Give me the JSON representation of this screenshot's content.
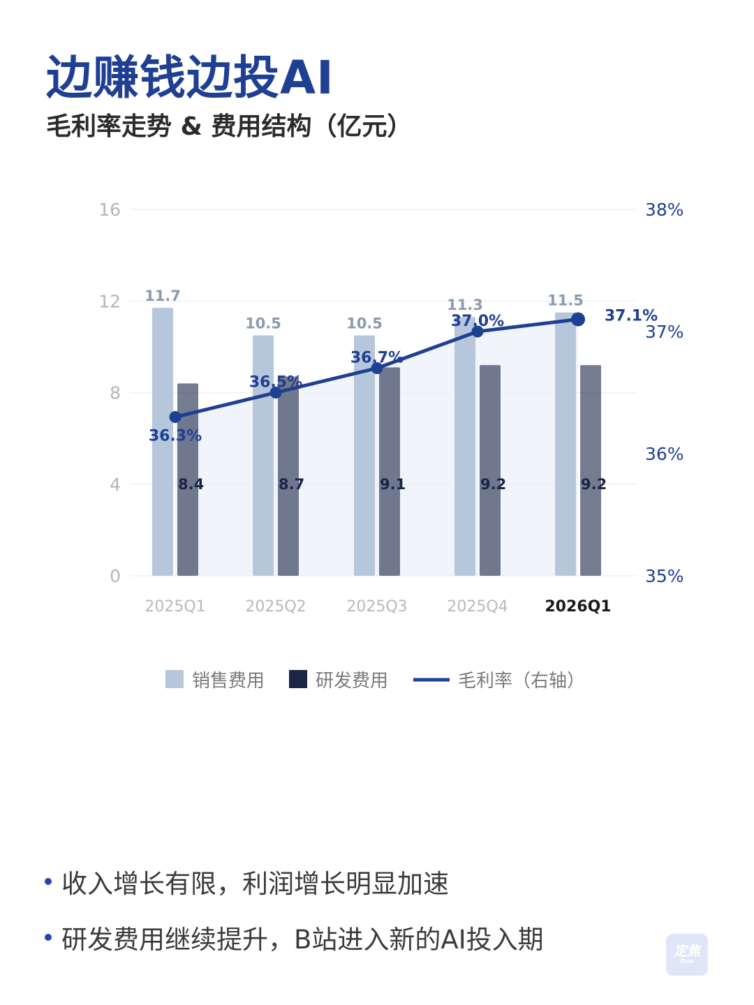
{
  "title": "边赚钱边投AI",
  "subtitle": "毛利率走势 & 费用结构（亿元）",
  "colors": {
    "sales": "#b7c7db",
    "rd": "#1b2546",
    "margin": "#1f3f93",
    "title": "#1f3f93"
  },
  "chart_data": {
    "type": "bar",
    "categories": [
      "2025Q1",
      "2025Q2",
      "2025Q3",
      "2025Q4",
      "2026Q1"
    ],
    "highlight_category": "2026Q1",
    "series": [
      {
        "name": "销售费用",
        "type": "bar",
        "axis": "left",
        "values": [
          11.7,
          10.5,
          10.5,
          11.3,
          11.5
        ],
        "labels": [
          "11.7",
          "10.5",
          "10.5",
          "11.3",
          "11.5"
        ]
      },
      {
        "name": "研发费用",
        "type": "bar",
        "axis": "left",
        "values": [
          8.4,
          8.7,
          9.1,
          9.2,
          9.2
        ],
        "labels": [
          "8.4",
          "8.7",
          "9.1",
          "9.2",
          "9.2"
        ]
      },
      {
        "name": "毛利率（右轴）",
        "type": "line",
        "axis": "right",
        "values": [
          36.3,
          36.5,
          36.7,
          37.0,
          37.1
        ],
        "labels": [
          "36.3%",
          "36.5%",
          "36.7%",
          "37.0%",
          "37.1%"
        ]
      }
    ],
    "y_left": {
      "ylim": [
        0,
        16
      ],
      "ticks": [
        "0",
        "4",
        "8",
        "12",
        "16"
      ]
    },
    "y_right": {
      "ylim": [
        35,
        38
      ],
      "ticks": [
        "35%",
        "36%",
        "37%",
        "38%"
      ]
    },
    "grid": true,
    "legend_position": "bottom"
  },
  "bullets": [
    "收入增长有限，利润增长明显加速",
    "研发费用继续提升，B站进入新的AI投入期"
  ],
  "badge": {
    "text": "定焦",
    "sub": "One"
  }
}
